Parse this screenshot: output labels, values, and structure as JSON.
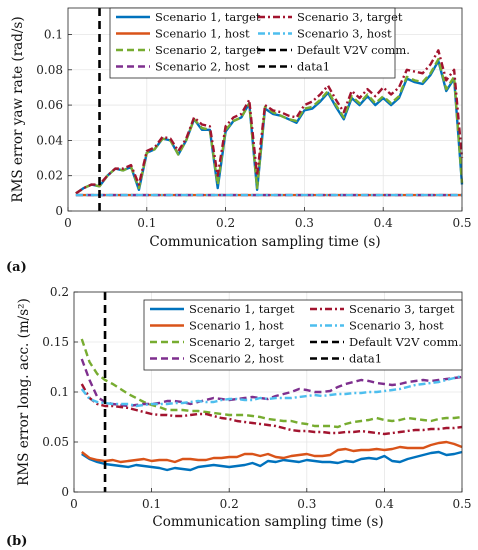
{
  "chart_data": [
    {
      "type": "line",
      "panel_label": "(a)",
      "xlabel": "Communication sampling time (s)",
      "ylabel": "RMS error yaw rate (rad/s)",
      "xlim": [
        0,
        0.5
      ],
      "ylim": [
        0,
        0.115
      ],
      "xticks": [
        0,
        0.1,
        0.2,
        0.3,
        0.4,
        0.5
      ],
      "xtick_labels": [
        "0",
        "0.1",
        "0.2",
        "0.3",
        "0.4",
        "0.5"
      ],
      "yticks": [
        0,
        0.02,
        0.04,
        0.06,
        0.08,
        0.1
      ],
      "ytick_labels": [
        "0",
        "0.02",
        "0.04",
        "0.06",
        "0.08",
        "0.1"
      ],
      "grid": true,
      "legend_position": "top",
      "vline_x": 0.04,
      "x": [
        0.01,
        0.02,
        0.03,
        0.04,
        0.05,
        0.06,
        0.07,
        0.08,
        0.09,
        0.1,
        0.11,
        0.12,
        0.13,
        0.14,
        0.15,
        0.16,
        0.17,
        0.18,
        0.19,
        0.2,
        0.21,
        0.22,
        0.23,
        0.24,
        0.25,
        0.26,
        0.27,
        0.28,
        0.29,
        0.3,
        0.31,
        0.32,
        0.33,
        0.34,
        0.35,
        0.36,
        0.37,
        0.38,
        0.39,
        0.4,
        0.41,
        0.42,
        0.43,
        0.44,
        0.45,
        0.46,
        0.47,
        0.48,
        0.49,
        0.5
      ],
      "series": [
        {
          "name": "Scenario 1, target",
          "color": "#0072BD",
          "dash": "solid",
          "values": [
            0.01,
            0.013,
            0.015,
            0.014,
            0.02,
            0.024,
            0.023,
            0.025,
            0.012,
            0.033,
            0.035,
            0.041,
            0.04,
            0.032,
            0.04,
            0.052,
            0.046,
            0.046,
            0.013,
            0.045,
            0.051,
            0.053,
            0.061,
            0.012,
            0.058,
            0.055,
            0.054,
            0.052,
            0.05,
            0.057,
            0.058,
            0.062,
            0.067,
            0.059,
            0.052,
            0.064,
            0.06,
            0.065,
            0.06,
            0.064,
            0.06,
            0.064,
            0.075,
            0.073,
            0.072,
            0.077,
            0.085,
            0.068,
            0.075,
            0.015
          ]
        },
        {
          "name": "Scenario 1, host",
          "color": "#D95319",
          "dash": "solid",
          "values": [
            0.009,
            0.009,
            0.009,
            0.009,
            0.009,
            0.009,
            0.009,
            0.009,
            0.009,
            0.009,
            0.009,
            0.009,
            0.009,
            0.009,
            0.009,
            0.009,
            0.009,
            0.009,
            0.009,
            0.009,
            0.009,
            0.009,
            0.009,
            0.009,
            0.009,
            0.009,
            0.009,
            0.009,
            0.009,
            0.009,
            0.009,
            0.009,
            0.009,
            0.009,
            0.009,
            0.009,
            0.009,
            0.009,
            0.009,
            0.009,
            0.009,
            0.009,
            0.009,
            0.009,
            0.009,
            0.009,
            0.009,
            0.009,
            0.009,
            0.009
          ]
        },
        {
          "name": "Scenario 2, target",
          "color": "#77AC30",
          "dash": "dashed",
          "values": [
            0.01,
            0.013,
            0.015,
            0.014,
            0.02,
            0.024,
            0.023,
            0.025,
            0.013,
            0.033,
            0.035,
            0.041,
            0.04,
            0.032,
            0.04,
            0.052,
            0.047,
            0.046,
            0.015,
            0.046,
            0.051,
            0.053,
            0.061,
            0.013,
            0.059,
            0.056,
            0.054,
            0.052,
            0.051,
            0.058,
            0.059,
            0.063,
            0.068,
            0.06,
            0.053,
            0.065,
            0.061,
            0.066,
            0.061,
            0.065,
            0.061,
            0.065,
            0.076,
            0.074,
            0.073,
            0.078,
            0.086,
            0.069,
            0.076,
            0.016
          ]
        },
        {
          "name": "Scenario 2, host",
          "color": "#7E2F8E",
          "dash": "dashed",
          "values": [
            0.009,
            0.009,
            0.009,
            0.009,
            0.009,
            0.009,
            0.009,
            0.009,
            0.009,
            0.009,
            0.009,
            0.009,
            0.009,
            0.009,
            0.009,
            0.009,
            0.009,
            0.009,
            0.009,
            0.009,
            0.009,
            0.009,
            0.009,
            0.009,
            0.009,
            0.009,
            0.009,
            0.009,
            0.009,
            0.009,
            0.009,
            0.009,
            0.009,
            0.009,
            0.009,
            0.009,
            0.009,
            0.009,
            0.009,
            0.009,
            0.009,
            0.009,
            0.009,
            0.009,
            0.009,
            0.009,
            0.009,
            0.009,
            0.009,
            0.009
          ]
        },
        {
          "name": "Scenario 3, target",
          "color": "#A2142F",
          "dash": "dashdot",
          "values": [
            0.01,
            0.013,
            0.015,
            0.015,
            0.02,
            0.024,
            0.024,
            0.026,
            0.015,
            0.034,
            0.036,
            0.042,
            0.041,
            0.034,
            0.041,
            0.053,
            0.049,
            0.048,
            0.02,
            0.048,
            0.053,
            0.055,
            0.063,
            0.02,
            0.06,
            0.057,
            0.056,
            0.054,
            0.053,
            0.06,
            0.062,
            0.066,
            0.071,
            0.063,
            0.056,
            0.068,
            0.064,
            0.069,
            0.065,
            0.07,
            0.066,
            0.07,
            0.08,
            0.079,
            0.078,
            0.083,
            0.091,
            0.074,
            0.08,
            0.03
          ]
        },
        {
          "name": "Scenario 3, host",
          "color": "#4DBEEE",
          "dash": "dashdot",
          "values": [
            0.009,
            0.009,
            0.009,
            0.009,
            0.009,
            0.009,
            0.009,
            0.009,
            0.009,
            0.009,
            0.009,
            0.009,
            0.009,
            0.009,
            0.009,
            0.009,
            0.009,
            0.009,
            0.009,
            0.009,
            0.009,
            0.009,
            0.009,
            0.009,
            0.009,
            0.009,
            0.009,
            0.009,
            0.009,
            0.009,
            0.009,
            0.009,
            0.009,
            0.009,
            0.009,
            0.009,
            0.009,
            0.009,
            0.009,
            0.009,
            0.009,
            0.009,
            0.009,
            0.009,
            0.009,
            0.009,
            0.009,
            0.009,
            0.009,
            0.009
          ]
        }
      ],
      "legend": [
        {
          "name": "Scenario 1, target",
          "color": "#0072BD",
          "dash": "solid"
        },
        {
          "name": "Scenario 3, target",
          "color": "#A2142F",
          "dash": "dashdot"
        },
        {
          "name": "Scenario 1, host",
          "color": "#D95319",
          "dash": "solid"
        },
        {
          "name": "Scenario 3, host",
          "color": "#4DBEEE",
          "dash": "dashdot"
        },
        {
          "name": "Scenario 2, target",
          "color": "#77AC30",
          "dash": "dashed"
        },
        {
          "name": "Default V2V comm.",
          "color": "#000000",
          "dash": "dashed"
        },
        {
          "name": "Scenario 2, host",
          "color": "#7E2F8E",
          "dash": "dashed"
        },
        {
          "name": "data1",
          "color": "#000000",
          "dash": "dashed"
        }
      ]
    },
    {
      "type": "line",
      "panel_label": "(b)",
      "xlabel": "Communication sampling time (s)",
      "ylabel": "RMS error long. acc. (m/s²)",
      "xlim": [
        0,
        0.5
      ],
      "ylim": [
        0,
        0.2
      ],
      "xticks": [
        0,
        0.1,
        0.2,
        0.3,
        0.4,
        0.5
      ],
      "xtick_labels": [
        "0",
        "0.1",
        "0.2",
        "0.3",
        "0.4",
        "0.5"
      ],
      "yticks": [
        0,
        0.05,
        0.1,
        0.15,
        0.2
      ],
      "ytick_labels": [
        "0",
        "0.05",
        "0.1",
        "0.15",
        "0.2"
      ],
      "grid": true,
      "legend_position": "top-right",
      "vline_x": 0.04,
      "x": [
        0.01,
        0.02,
        0.03,
        0.04,
        0.05,
        0.06,
        0.07,
        0.08,
        0.09,
        0.1,
        0.11,
        0.12,
        0.13,
        0.14,
        0.15,
        0.16,
        0.17,
        0.18,
        0.19,
        0.2,
        0.21,
        0.22,
        0.23,
        0.24,
        0.25,
        0.26,
        0.27,
        0.28,
        0.29,
        0.3,
        0.31,
        0.32,
        0.33,
        0.34,
        0.35,
        0.36,
        0.37,
        0.38,
        0.39,
        0.4,
        0.41,
        0.42,
        0.43,
        0.44,
        0.45,
        0.46,
        0.47,
        0.48,
        0.49,
        0.5
      ],
      "series": [
        {
          "name": "Scenario 1, target",
          "color": "#0072BD",
          "dash": "solid",
          "values": [
            0.038,
            0.033,
            0.03,
            0.028,
            0.027,
            0.026,
            0.025,
            0.027,
            0.026,
            0.025,
            0.024,
            0.022,
            0.024,
            0.023,
            0.022,
            0.025,
            0.026,
            0.027,
            0.026,
            0.025,
            0.026,
            0.027,
            0.029,
            0.026,
            0.031,
            0.03,
            0.032,
            0.031,
            0.03,
            0.032,
            0.031,
            0.03,
            0.03,
            0.029,
            0.031,
            0.03,
            0.033,
            0.034,
            0.033,
            0.036,
            0.031,
            0.03,
            0.033,
            0.035,
            0.037,
            0.039,
            0.04,
            0.037,
            0.038,
            0.04
          ]
        },
        {
          "name": "Scenario 1, host",
          "color": "#D95319",
          "dash": "solid",
          "values": [
            0.04,
            0.034,
            0.032,
            0.031,
            0.032,
            0.03,
            0.031,
            0.032,
            0.033,
            0.031,
            0.032,
            0.032,
            0.03,
            0.033,
            0.033,
            0.032,
            0.032,
            0.034,
            0.034,
            0.035,
            0.035,
            0.038,
            0.038,
            0.036,
            0.038,
            0.035,
            0.034,
            0.036,
            0.037,
            0.038,
            0.036,
            0.036,
            0.037,
            0.042,
            0.043,
            0.041,
            0.042,
            0.042,
            0.043,
            0.042,
            0.043,
            0.045,
            0.044,
            0.044,
            0.044,
            0.047,
            0.049,
            0.05,
            0.048,
            0.045
          ]
        },
        {
          "name": "Scenario 2, target",
          "color": "#77AC30",
          "dash": "dashed",
          "values": [
            0.153,
            0.13,
            0.118,
            0.112,
            0.108,
            0.103,
            0.098,
            0.094,
            0.09,
            0.087,
            0.085,
            0.082,
            0.082,
            0.082,
            0.081,
            0.081,
            0.08,
            0.079,
            0.078,
            0.077,
            0.077,
            0.077,
            0.076,
            0.075,
            0.073,
            0.072,
            0.071,
            0.071,
            0.069,
            0.068,
            0.066,
            0.066,
            0.066,
            0.065,
            0.068,
            0.07,
            0.071,
            0.072,
            0.074,
            0.072,
            0.071,
            0.072,
            0.074,
            0.073,
            0.072,
            0.071,
            0.073,
            0.074,
            0.074,
            0.075
          ]
        },
        {
          "name": "Scenario 2, host",
          "color": "#7E2F8E",
          "dash": "dashed",
          "values": [
            0.133,
            0.112,
            0.095,
            0.09,
            0.088,
            0.087,
            0.086,
            0.087,
            0.088,
            0.088,
            0.089,
            0.091,
            0.091,
            0.09,
            0.088,
            0.09,
            0.092,
            0.094,
            0.093,
            0.092,
            0.093,
            0.094,
            0.095,
            0.094,
            0.093,
            0.096,
            0.098,
            0.1,
            0.103,
            0.102,
            0.1,
            0.1,
            0.101,
            0.105,
            0.108,
            0.11,
            0.112,
            0.111,
            0.109,
            0.108,
            0.107,
            0.108,
            0.11,
            0.111,
            0.112,
            0.111,
            0.112,
            0.113,
            0.114,
            0.115
          ]
        },
        {
          "name": "Scenario 3, target",
          "color": "#A2142F",
          "dash": "dashdot",
          "values": [
            0.108,
            0.094,
            0.088,
            0.086,
            0.086,
            0.085,
            0.084,
            0.082,
            0.08,
            0.078,
            0.077,
            0.077,
            0.076,
            0.076,
            0.077,
            0.078,
            0.078,
            0.076,
            0.074,
            0.073,
            0.071,
            0.07,
            0.069,
            0.068,
            0.067,
            0.066,
            0.064,
            0.062,
            0.061,
            0.061,
            0.06,
            0.06,
            0.059,
            0.059,
            0.06,
            0.06,
            0.061,
            0.06,
            0.059,
            0.058,
            0.059,
            0.06,
            0.061,
            0.062,
            0.062,
            0.063,
            0.063,
            0.064,
            0.064,
            0.065
          ]
        },
        {
          "name": "Scenario 3, host",
          "color": "#4DBEEE",
          "dash": "dashdot",
          "values": [
            0.103,
            0.093,
            0.09,
            0.089,
            0.088,
            0.088,
            0.088,
            0.086,
            0.087,
            0.088,
            0.088,
            0.088,
            0.089,
            0.089,
            0.09,
            0.091,
            0.09,
            0.09,
            0.092,
            0.093,
            0.093,
            0.092,
            0.092,
            0.094,
            0.093,
            0.094,
            0.094,
            0.094,
            0.095,
            0.096,
            0.097,
            0.096,
            0.097,
            0.098,
            0.098,
            0.099,
            0.099,
            0.1,
            0.1,
            0.101,
            0.102,
            0.103,
            0.105,
            0.107,
            0.108,
            0.109,
            0.11,
            0.112,
            0.114,
            0.116
          ]
        }
      ],
      "legend": [
        {
          "name": "Scenario 1, target",
          "color": "#0072BD",
          "dash": "solid"
        },
        {
          "name": "Scenario 3, target",
          "color": "#A2142F",
          "dash": "dashdot"
        },
        {
          "name": "Scenario 1, host",
          "color": "#D95319",
          "dash": "solid"
        },
        {
          "name": "Scenario 3, host",
          "color": "#4DBEEE",
          "dash": "dashdot"
        },
        {
          "name": "Scenario 2, target",
          "color": "#77AC30",
          "dash": "dashed"
        },
        {
          "name": "Default V2V comm.",
          "color": "#000000",
          "dash": "dashed"
        },
        {
          "name": "Scenario 2, host",
          "color": "#7E2F8E",
          "dash": "dashed"
        },
        {
          "name": "data1",
          "color": "#000000",
          "dash": "dashed"
        }
      ]
    }
  ]
}
